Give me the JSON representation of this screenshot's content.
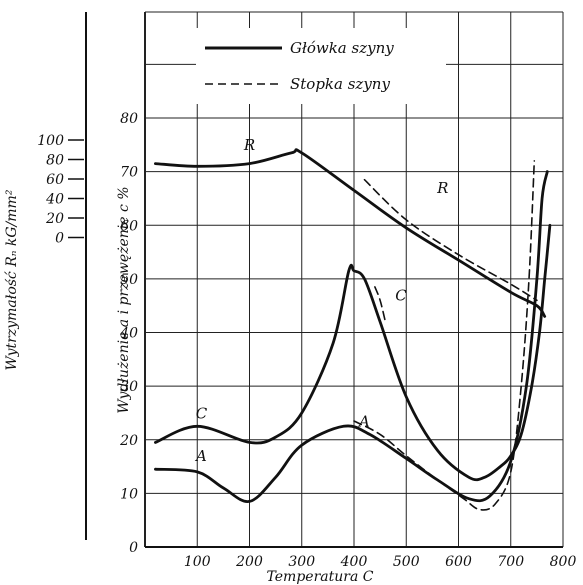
{
  "chart_data": {
    "type": "line",
    "xlabel": "Temperatura C",
    "ylabel": "Wydłużenie a i przewężenie c %",
    "ylabel2": "Wytrzymałość Rₙ kG/mm²",
    "x_ticks": [
      "100",
      "200",
      "300",
      "400",
      "500",
      "600",
      "700",
      "800"
    ],
    "y_ticks": [
      "0",
      "10",
      "20",
      "30",
      "40",
      "50",
      "60",
      "70",
      "80"
    ],
    "y2_ticks": [
      "100",
      "80",
      "60",
      "40",
      "20",
      "0"
    ],
    "xlim": [
      0,
      800
    ],
    "ylim": [
      0,
      80
    ],
    "grid": true,
    "legend_position": "top",
    "legend": [
      {
        "label": "Główka szyny",
        "style": "solid"
      },
      {
        "label": "Stopka szyny",
        "style": "dashed"
      }
    ],
    "series": [
      {
        "curve": "R",
        "style": "solid",
        "x": [
          20,
          100,
          200,
          280,
          300,
          400,
          500,
          600,
          700,
          750,
          765
        ],
        "y": [
          71.5,
          71,
          71.5,
          73.5,
          73.5,
          66.5,
          59.5,
          53.5,
          47.5,
          45,
          43
        ]
      },
      {
        "curve": "R",
        "style": "dashed",
        "x": [
          420,
          500,
          600,
          700,
          750
        ],
        "y": [
          68.5,
          61,
          54.5,
          49,
          46
        ]
      },
      {
        "curve": "C",
        "style": "solid",
        "x": [
          20,
          100,
          200,
          250,
          300,
          360,
          390,
          400,
          420,
          450,
          500,
          560,
          620,
          650,
          680,
          700,
          720,
          740,
          755,
          765,
          775
        ],
        "y": [
          19.5,
          22.5,
          19.5,
          20.5,
          25,
          38,
          51.5,
          51.5,
          50,
          42,
          28,
          18,
          13,
          13,
          15,
          17,
          21,
          30,
          40,
          50,
          60
        ]
      },
      {
        "curve": "C",
        "style": "dashed",
        "x": [
          440,
          450,
          460
        ],
        "y": [
          48.5,
          46,
          42
        ]
      },
      {
        "curve": "A",
        "style": "solid",
        "x": [
          20,
          100,
          150,
          200,
          250,
          300,
          380,
          430,
          500,
          560,
          620,
          660,
          700,
          730,
          750,
          760,
          770
        ],
        "y": [
          14.5,
          14,
          11,
          8.5,
          13,
          19,
          22.5,
          21,
          16.5,
          12.5,
          9,
          9.5,
          16,
          30,
          50,
          65,
          70
        ]
      },
      {
        "curve": "A",
        "style": "dashed",
        "x": [
          400,
          450,
          500,
          560,
          610,
          640,
          670,
          700,
          720,
          735,
          745
        ],
        "y": [
          23.5,
          21,
          17,
          12.5,
          9,
          7,
          8,
          14,
          30,
          50,
          72
        ]
      }
    ],
    "curve_labels": [
      {
        "text": "R",
        "x": 200,
        "y": 74
      },
      {
        "text": "R",
        "x": 570,
        "y": 66
      },
      {
        "text": "C",
        "x": 108,
        "y": 24
      },
      {
        "text": "C",
        "x": 490,
        "y": 46
      },
      {
        "text": "A",
        "x": 420,
        "y": 22.5
      },
      {
        "text": "A",
        "x": 108,
        "y": 16
      }
    ]
  }
}
